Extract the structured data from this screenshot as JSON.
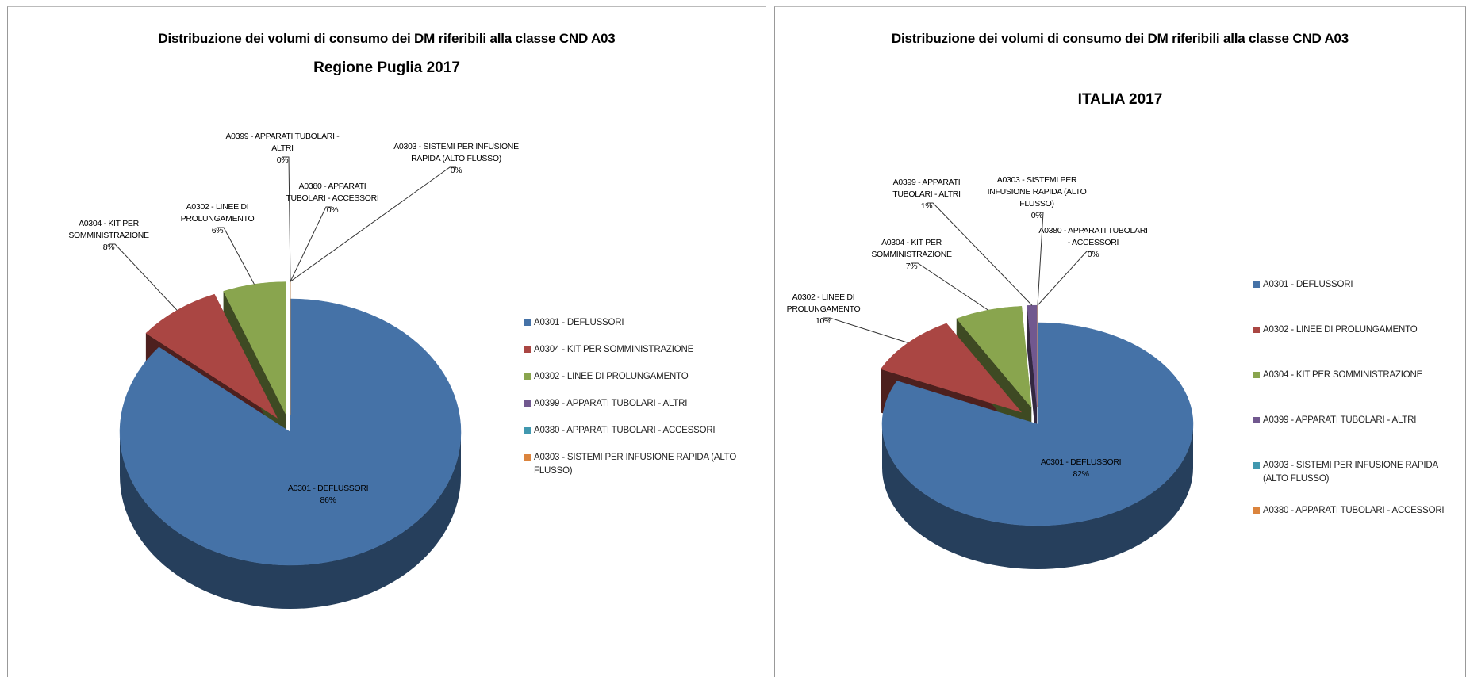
{
  "chart_data": [
    {
      "type": "pie",
      "title": "Distribuzione dei volumi di consumo dei DM riferibili alla classe CND A03",
      "subtitle": "Regione Puglia 2017",
      "categories": [
        "A0301 - DEFLUSSORI",
        "A0304 - KIT PER SOMMINISTRAZIONE",
        "A0302 - LINEE DI PROLUNGAMENTO",
        "A0399 - APPARATI TUBOLARI - ALTRI",
        "A0380 - APPARATI TUBOLARI - ACCESSORI",
        "A0303 - SISTEMI PER INFUSIONE RAPIDA (ALTO FLUSSO)"
      ],
      "values": [
        86,
        8,
        6,
        0,
        0,
        0
      ],
      "value_labels": [
        "86%",
        "8%",
        "6%",
        "0%",
        "0%",
        "0%"
      ],
      "colors": [
        "#4572a7",
        "#aa4643",
        "#89a54e",
        "#71588f",
        "#4198af",
        "#db843d"
      ],
      "legend": "right"
    },
    {
      "type": "pie",
      "title": "Distribuzione dei volumi di consumo dei DM riferibili alla classe CND A03",
      "subtitle": "ITALIA 2017",
      "categories": [
        "A0301 - DEFLUSSORI",
        "A0302 - LINEE DI PROLUNGAMENTO",
        "A0304 - KIT PER SOMMINISTRAZIONE",
        "A0399 - APPARATI TUBOLARI - ALTRI",
        "A0303 - SISTEMI PER INFUSIONE RAPIDA (ALTO FLUSSO)",
        "A0380 - APPARATI TUBOLARI - ACCESSORI"
      ],
      "values": [
        82,
        10,
        7,
        1,
        0,
        0
      ],
      "value_labels": [
        "82%",
        "10%",
        "7%",
        "1%",
        "0%",
        "0%"
      ],
      "colors": [
        "#4572a7",
        "#aa4643",
        "#89a54e",
        "#71588f",
        "#4198af",
        "#db843d"
      ],
      "legend": "right"
    }
  ]
}
